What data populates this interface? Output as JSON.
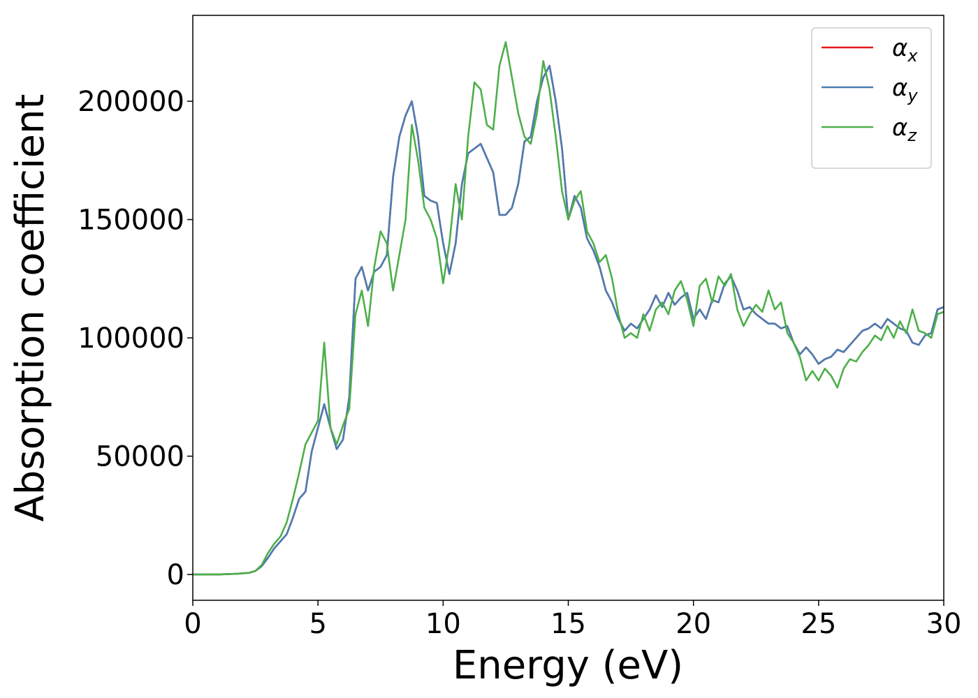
{
  "chart_data": {
    "type": "line",
    "xlabel": "Energy (eV)",
    "ylabel": "Absorption coefficient",
    "x": [
      0,
      0.25,
      0.5,
      0.75,
      1,
      1.25,
      1.5,
      1.75,
      2,
      2.25,
      2.5,
      2.75,
      3,
      3.25,
      3.5,
      3.75,
      4,
      4.25,
      4.5,
      4.75,
      5,
      5.25,
      5.5,
      5.75,
      6,
      6.25,
      6.5,
      6.75,
      7,
      7.25,
      7.5,
      7.75,
      8,
      8.25,
      8.5,
      8.75,
      9,
      9.25,
      9.5,
      9.75,
      10,
      10.25,
      10.5,
      10.75,
      11,
      11.25,
      11.5,
      11.75,
      12,
      12.25,
      12.5,
      12.75,
      13,
      13.25,
      13.5,
      13.75,
      14,
      14.25,
      14.5,
      14.75,
      15,
      15.25,
      15.5,
      15.75,
      16,
      16.25,
      16.5,
      16.75,
      17,
      17.25,
      17.5,
      17.75,
      18,
      18.25,
      18.5,
      18.75,
      19,
      19.25,
      19.5,
      19.75,
      20,
      20.25,
      20.5,
      20.75,
      21,
      21.25,
      21.5,
      21.75,
      22,
      22.25,
      22.5,
      22.75,
      23,
      23.25,
      23.5,
      23.75,
      24,
      24.25,
      24.5,
      24.75,
      25,
      25.25,
      25.5,
      25.75,
      26,
      26.25,
      26.5,
      26.75,
      27,
      27.25,
      27.5,
      27.75,
      28,
      28.25,
      28.5,
      28.75,
      29,
      29.25,
      29.5,
      29.75,
      30
    ],
    "series": [
      {
        "name": "αx",
        "color": "#e41a1c",
        "values": [
          0,
          0,
          0,
          0,
          0,
          100,
          200,
          300,
          500,
          700,
          1500,
          3500,
          7000,
          11000,
          14000,
          17000,
          24000,
          32000,
          35000,
          52000,
          62000,
          72000,
          62000,
          53000,
          57000,
          75000,
          125000,
          130000,
          120000,
          128000,
          130000,
          135000,
          168000,
          185000,
          194000,
          200000,
          185000,
          160000,
          158000,
          157000,
          140000,
          127000,
          140000,
          165000,
          178000,
          180000,
          182000,
          176000,
          170000,
          152000,
          152000,
          155000,
          165000,
          183000,
          185000,
          200000,
          210000,
          215000,
          200000,
          180000,
          150000,
          160000,
          155000,
          142000,
          137000,
          130000,
          120000,
          115000,
          108000,
          103000,
          106000,
          104000,
          108000,
          112000,
          118000,
          113000,
          119000,
          114000,
          117000,
          119000,
          108000,
          112000,
          108000,
          116000,
          115000,
          123000,
          126000,
          120000,
          112000,
          113000,
          110000,
          108000,
          106000,
          106000,
          104000,
          105000,
          98000,
          93000,
          96000,
          93000,
          89000,
          91000,
          92000,
          95000,
          94000,
          97000,
          100000,
          103000,
          104000,
          106000,
          104000,
          108000,
          106000,
          104000,
          103000,
          98000,
          97000,
          101000,
          102000,
          112000,
          113000
        ]
      },
      {
        "name": "αy",
        "color": "#4a7db3",
        "values": [
          0,
          0,
          0,
          0,
          0,
          100,
          200,
          300,
          500,
          700,
          1500,
          3500,
          7000,
          11000,
          14000,
          17000,
          24000,
          32000,
          35000,
          52000,
          62000,
          72000,
          62000,
          53000,
          57000,
          75000,
          125000,
          130000,
          120000,
          128000,
          130000,
          135000,
          168000,
          185000,
          194000,
          200000,
          185000,
          160000,
          158000,
          157000,
          140000,
          127000,
          140000,
          165000,
          178000,
          180000,
          182000,
          176000,
          170000,
          152000,
          152000,
          155000,
          165000,
          183000,
          185000,
          200000,
          210000,
          215000,
          200000,
          180000,
          150000,
          160000,
          155000,
          142000,
          137000,
          130000,
          120000,
          115000,
          108000,
          103000,
          106000,
          104000,
          108000,
          112000,
          118000,
          113000,
          119000,
          114000,
          117000,
          119000,
          108000,
          112000,
          108000,
          116000,
          115000,
          123000,
          126000,
          120000,
          112000,
          113000,
          110000,
          108000,
          106000,
          106000,
          104000,
          105000,
          98000,
          93000,
          96000,
          93000,
          89000,
          91000,
          92000,
          95000,
          94000,
          97000,
          100000,
          103000,
          104000,
          106000,
          104000,
          108000,
          106000,
          104000,
          103000,
          98000,
          97000,
          101000,
          102000,
          112000,
          113000
        ]
      },
      {
        "name": "αz",
        "color": "#4daf4a",
        "values": [
          0,
          0,
          0,
          0,
          0,
          100,
          200,
          300,
          500,
          700,
          1500,
          4000,
          9000,
          13000,
          16000,
          22000,
          32000,
          43000,
          55000,
          60000,
          65000,
          98000,
          62000,
          55000,
          63000,
          70000,
          110000,
          120000,
          105000,
          130000,
          145000,
          140000,
          120000,
          135000,
          150000,
          190000,
          175000,
          155000,
          150000,
          142000,
          123000,
          140000,
          165000,
          150000,
          185000,
          208000,
          205000,
          190000,
          188000,
          215000,
          225000,
          210000,
          195000,
          185000,
          182000,
          195000,
          217000,
          205000,
          185000,
          162000,
          150000,
          158000,
          162000,
          145000,
          140000,
          132000,
          135000,
          125000,
          110000,
          100000,
          102000,
          100000,
          110000,
          103000,
          112000,
          115000,
          110000,
          120000,
          124000,
          116000,
          105000,
          122000,
          125000,
          115000,
          126000,
          122000,
          127000,
          112000,
          105000,
          110000,
          114000,
          111000,
          120000,
          112000,
          115000,
          102000,
          98000,
          92000,
          82000,
          86000,
          82000,
          87000,
          84000,
          79000,
          87000,
          91000,
          90000,
          94000,
          97000,
          101000,
          99000,
          105000,
          100000,
          107000,
          102000,
          112000,
          103000,
          102000,
          100000,
          110000,
          111000
        ]
      }
    ],
    "xlim": [
      0,
      30
    ],
    "xticks": [
      0,
      5,
      10,
      15,
      20,
      25,
      30
    ],
    "ylim": [
      -10900,
      236300
    ],
    "yticks": [
      0,
      50000,
      100000,
      150000,
      200000
    ],
    "grid": false,
    "legend": "upper right"
  }
}
